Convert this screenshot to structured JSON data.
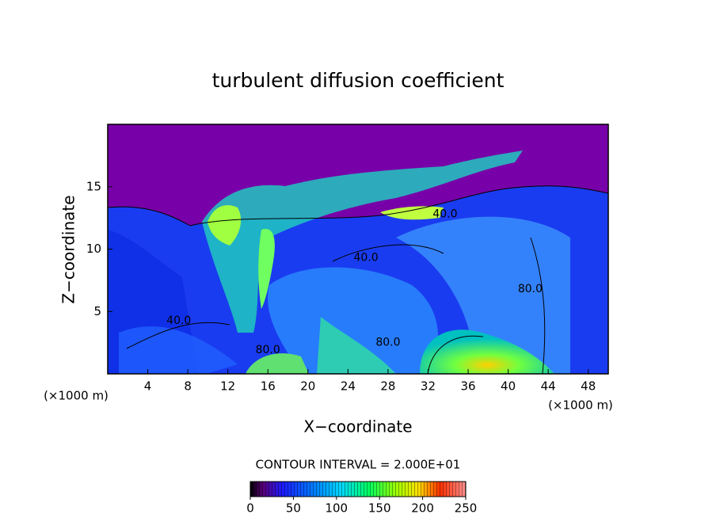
{
  "chart_data": {
    "type": "contour",
    "title": "turbulent diffusion coefficient",
    "x_label": "X−coordinate",
    "y_label": "Z−coordinate",
    "x_unit": "(×1000 m)",
    "xlim": [
      0,
      50
    ],
    "xticks": [
      4,
      8,
      12,
      16,
      20,
      24,
      28,
      32,
      36,
      40,
      44,
      48
    ],
    "ylim": [
      0,
      20
    ],
    "yticks": [
      5,
      10,
      15
    ],
    "contour_labels": [
      {
        "x": 7.1,
        "y": 4.25,
        "value": 40,
        "label": "40.0"
      },
      {
        "x": 25.8,
        "y": 9.3,
        "value": 40,
        "label": "40.0"
      },
      {
        "x": 33.7,
        "y": 12.8,
        "value": 40,
        "label": "40.0"
      },
      {
        "x": 16,
        "y": 1.9,
        "value": 80,
        "label": "80.0"
      },
      {
        "x": 28,
        "y": 2.5,
        "value": 80,
        "label": "80.0"
      },
      {
        "x": 42.2,
        "y": 6.8,
        "value": 80,
        "label": "80.0"
      }
    ],
    "contour_interval": "CONTOUR INTERVAL = 2.000E+01",
    "clim": [
      0,
      250
    ],
    "cticks": [
      0,
      50,
      100,
      150,
      200,
      250
    ]
  }
}
